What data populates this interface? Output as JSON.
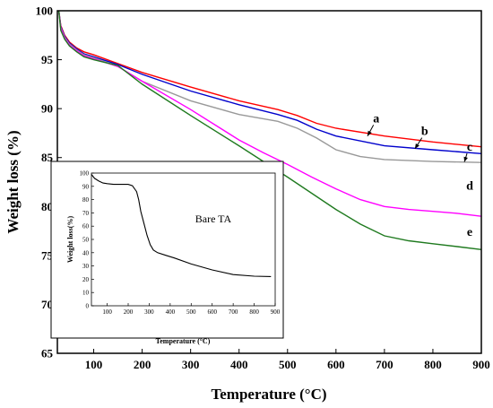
{
  "chart_data": [
    {
      "type": "line",
      "xlabel": "Temperature (°C)",
      "ylabel": "Weight loss (%)",
      "xlim": [
        25,
        900
      ],
      "ylim": [
        65,
        100
      ],
      "xticks": [
        100,
        200,
        300,
        400,
        500,
        600,
        700,
        800,
        900
      ],
      "yticks": [
        65,
        70,
        75,
        80,
        85,
        90,
        95,
        100
      ],
      "series": [
        {
          "name": "a",
          "color": "#ff0000",
          "x": [
            28,
            32,
            40,
            50,
            65,
            80,
            100,
            150,
            200,
            300,
            400,
            480,
            520,
            560,
            600,
            700,
            800,
            900
          ],
          "y": [
            100,
            98.5,
            97.5,
            96.8,
            96.2,
            95.8,
            95.5,
            94.6,
            93.7,
            92.2,
            90.8,
            89.9,
            89.3,
            88.5,
            88.0,
            87.2,
            86.6,
            86.1
          ]
        },
        {
          "name": "b",
          "color": "#0000cc",
          "x": [
            28,
            32,
            40,
            50,
            65,
            80,
            100,
            150,
            200,
            300,
            400,
            480,
            520,
            560,
            600,
            700,
            800,
            900
          ],
          "y": [
            100,
            98.4,
            97.4,
            96.7,
            96.1,
            95.6,
            95.3,
            94.5,
            93.5,
            91.8,
            90.4,
            89.4,
            88.8,
            87.9,
            87.2,
            86.2,
            85.8,
            85.4
          ]
        },
        {
          "name": "c",
          "color": "#999999",
          "x": [
            28,
            32,
            40,
            50,
            65,
            80,
            100,
            150,
            200,
            300,
            400,
            480,
            520,
            560,
            600,
            650,
            700,
            800,
            900
          ],
          "y": [
            100,
            98.3,
            97.3,
            96.6,
            96.0,
            95.5,
            95.2,
            94.3,
            92.8,
            90.8,
            89.4,
            88.7,
            88.0,
            87.0,
            85.8,
            85.1,
            84.8,
            84.6,
            84.5
          ]
        },
        {
          "name": "d",
          "color": "#ff00ff",
          "x": [
            28,
            32,
            40,
            50,
            65,
            80,
            100,
            150,
            200,
            300,
            400,
            450,
            500,
            550,
            600,
            650,
            700,
            750,
            800,
            850,
            900
          ],
          "y": [
            100,
            98.2,
            97.2,
            96.5,
            95.9,
            95.4,
            95.1,
            94.3,
            92.8,
            89.9,
            86.8,
            85.5,
            84.3,
            83.0,
            81.8,
            80.7,
            80.0,
            79.7,
            79.5,
            79.3,
            79.0
          ]
        },
        {
          "name": "e",
          "color": "#1f7a1f",
          "x": [
            28,
            32,
            40,
            50,
            65,
            80,
            100,
            150,
            200,
            300,
            400,
            500,
            600,
            650,
            700,
            750,
            800,
            850,
            900
          ],
          "y": [
            100,
            98.0,
            97.1,
            96.4,
            95.8,
            95.3,
            95.0,
            94.4,
            92.5,
            89.3,
            86.2,
            83.0,
            79.7,
            78.2,
            77.0,
            76.5,
            76.2,
            75.9,
            75.6
          ]
        }
      ],
      "curve_labels": [
        "a",
        "b",
        "c",
        "d",
        "e"
      ]
    },
    {
      "type": "line",
      "xlabel": "Temperature (°C)",
      "ylabel": "Weight loss(%)",
      "xlim": [
        25,
        900
      ],
      "ylim": [
        0,
        100
      ],
      "xticks": [
        100,
        200,
        300,
        400,
        500,
        600,
        700,
        800,
        900
      ],
      "yticks": [
        0,
        10,
        20,
        30,
        40,
        50,
        60,
        70,
        80,
        90,
        100
      ],
      "annotation": "Bare TA",
      "series": [
        {
          "color": "#000000",
          "x": [
            25,
            40,
            60,
            80,
            100,
            130,
            160,
            200,
            220,
            240,
            250,
            260,
            275,
            290,
            305,
            320,
            340,
            380,
            420,
            500,
            600,
            700,
            800,
            880
          ],
          "y": [
            99,
            96,
            94,
            92.5,
            92,
            91.5,
            91.5,
            91.5,
            90.5,
            86,
            80,
            71,
            62,
            53,
            46,
            42,
            40,
            38,
            36,
            31.5,
            27,
            23.5,
            22.3,
            22
          ]
        }
      ]
    }
  ]
}
